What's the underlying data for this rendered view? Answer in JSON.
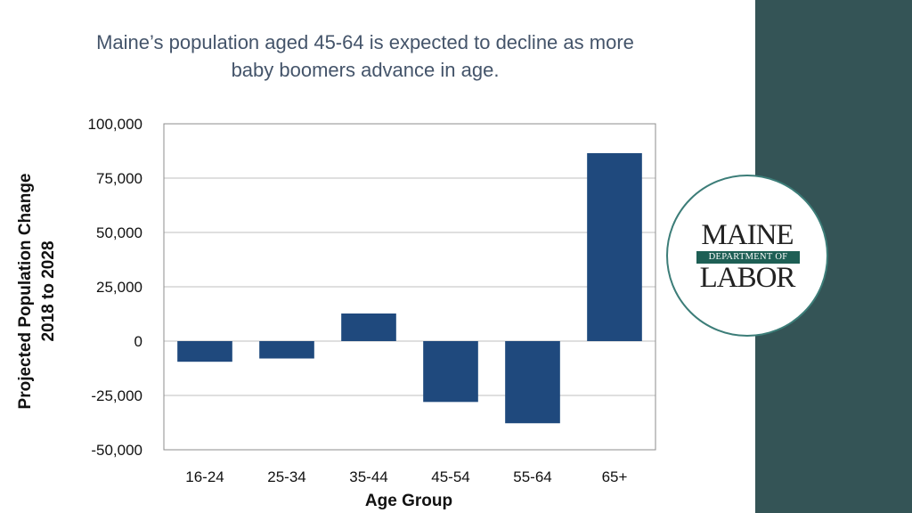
{
  "title": {
    "line1": "Maine’s population aged 45-64 is expected to decline as more",
    "line2": "baby boomers advance in age."
  },
  "logo": {
    "line1": "MAINE",
    "band": "DEPARTMENT OF",
    "line2": "LABOR"
  },
  "colors": {
    "bar": "#1f497d",
    "sidebar": "#345456",
    "title": "#44546a"
  },
  "chart_data": {
    "type": "bar",
    "title": "Maine’s population aged 45-64 is expected to decline as more baby boomers advance in age.",
    "xlabel": "Age Group",
    "ylabel_lines": [
      "Projected Population Change",
      "2018 to 2028"
    ],
    "categories": [
      "16-24",
      "25-34",
      "35-44",
      "45-54",
      "55-64",
      "65+"
    ],
    "values": [
      -9500,
      -8000,
      12700,
      -28000,
      -37800,
      86500
    ],
    "ylim": [
      -50000,
      100000
    ],
    "yticks": [
      100000,
      75000,
      50000,
      25000,
      0,
      -25000,
      -50000
    ],
    "ytick_labels": [
      "100,000",
      "75,000",
      "50,000",
      "25,000",
      "0",
      "-25,000",
      "-50,000"
    ],
    "grid": true,
    "legend": "none"
  }
}
